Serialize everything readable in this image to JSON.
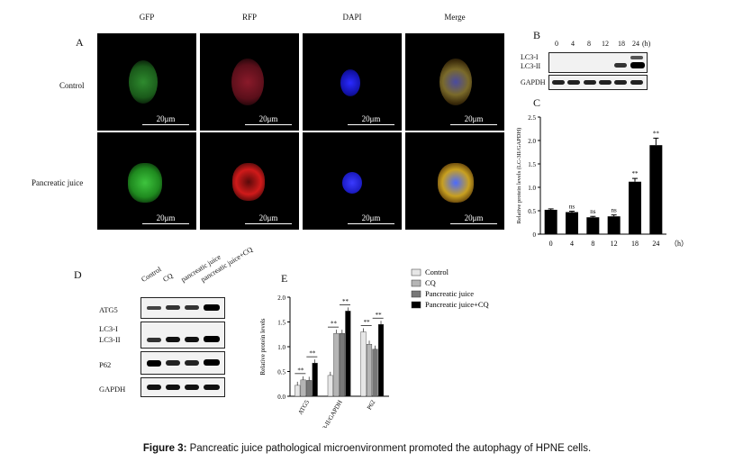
{
  "panelA": {
    "label": "A",
    "columns": [
      "GFP",
      "RFP",
      "DAPI",
      "Merge"
    ],
    "rows": [
      "Control",
      "Pancreatic juice"
    ],
    "scale_bar": "20μm"
  },
  "panelB": {
    "label": "B",
    "timepoints": [
      "0",
      "4",
      "8",
      "12",
      "18",
      "24"
    ],
    "unit": "(h)",
    "bands": [
      "LC3-I",
      "LC3-II",
      "GAPDH"
    ]
  },
  "panelD": {
    "label": "D",
    "lanes": [
      "Control",
      "CQ",
      "pancreatic juice",
      "pancreatic juice+CQ"
    ],
    "bands": [
      "ATG5",
      "LC3-I",
      "LC3-II",
      "P62",
      "GAPDH"
    ]
  },
  "chart_data": [
    {
      "type": "bar",
      "panel": "C",
      "categories": [
        "0",
        "4",
        "8",
        "12",
        "18",
        "24"
      ],
      "values": [
        0.52,
        0.47,
        0.36,
        0.38,
        1.12,
        1.9
      ],
      "errors": [
        0.02,
        0.02,
        0.02,
        0.03,
        0.07,
        0.15
      ],
      "annotations": [
        "",
        "ns",
        "ns",
        "ns",
        "**",
        "**"
      ],
      "xlabel": "（h）",
      "ylabel": "Relative protein levels (LC-3II/GAPDH)",
      "ylim": [
        0,
        2.5
      ],
      "yticks": [
        "0",
        "0.5",
        "1.0",
        "1.5",
        "2.0",
        "2.5"
      ]
    },
    {
      "type": "bar",
      "panel": "E",
      "categories": [
        "ATG5",
        "LC3-II/GAPDH",
        "P62"
      ],
      "series": [
        {
          "name": "Control",
          "values": [
            0.22,
            0.42,
            1.3
          ],
          "color": "#e6e6e6"
        },
        {
          "name": "CQ",
          "values": [
            0.33,
            1.27,
            1.05
          ],
          "color": "#b5b5b5"
        },
        {
          "name": "Pancreatic juice",
          "values": [
            0.32,
            1.27,
            0.95
          ],
          "color": "#777777"
        },
        {
          "name": "Pancreatic juice+CQ",
          "values": [
            0.67,
            1.72,
            1.45
          ],
          "color": "#000000"
        }
      ],
      "annotations": [
        "**",
        "**",
        "**",
        "**",
        "**",
        "**"
      ],
      "ylabel": "Relative protein levels",
      "ylim": [
        0,
        2.0
      ],
      "yticks": [
        "0.0",
        "0.5",
        "1.0",
        "1.5",
        "2.0"
      ]
    }
  ],
  "caption": {
    "label": "Figure 3:",
    "text": " Pancreatic juice pathological microenvironment promoted the autophagy of HPNE cells."
  }
}
